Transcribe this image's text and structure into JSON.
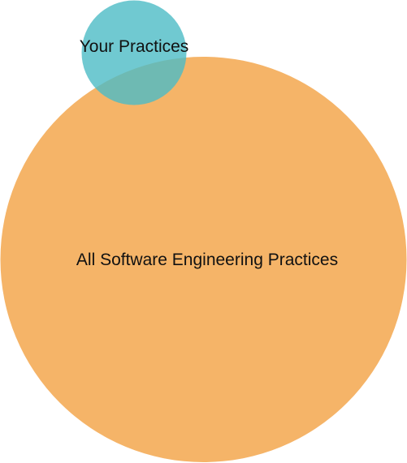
{
  "diagram": {
    "type": "venn",
    "sets": [
      {
        "id": "all",
        "label": "All Software Engineering Practices",
        "color": "#f5b468",
        "opacity": 1
      },
      {
        "id": "yours",
        "label": "Your Practices",
        "color": "#4cbcc6",
        "opacity": 0.8
      }
    ]
  }
}
